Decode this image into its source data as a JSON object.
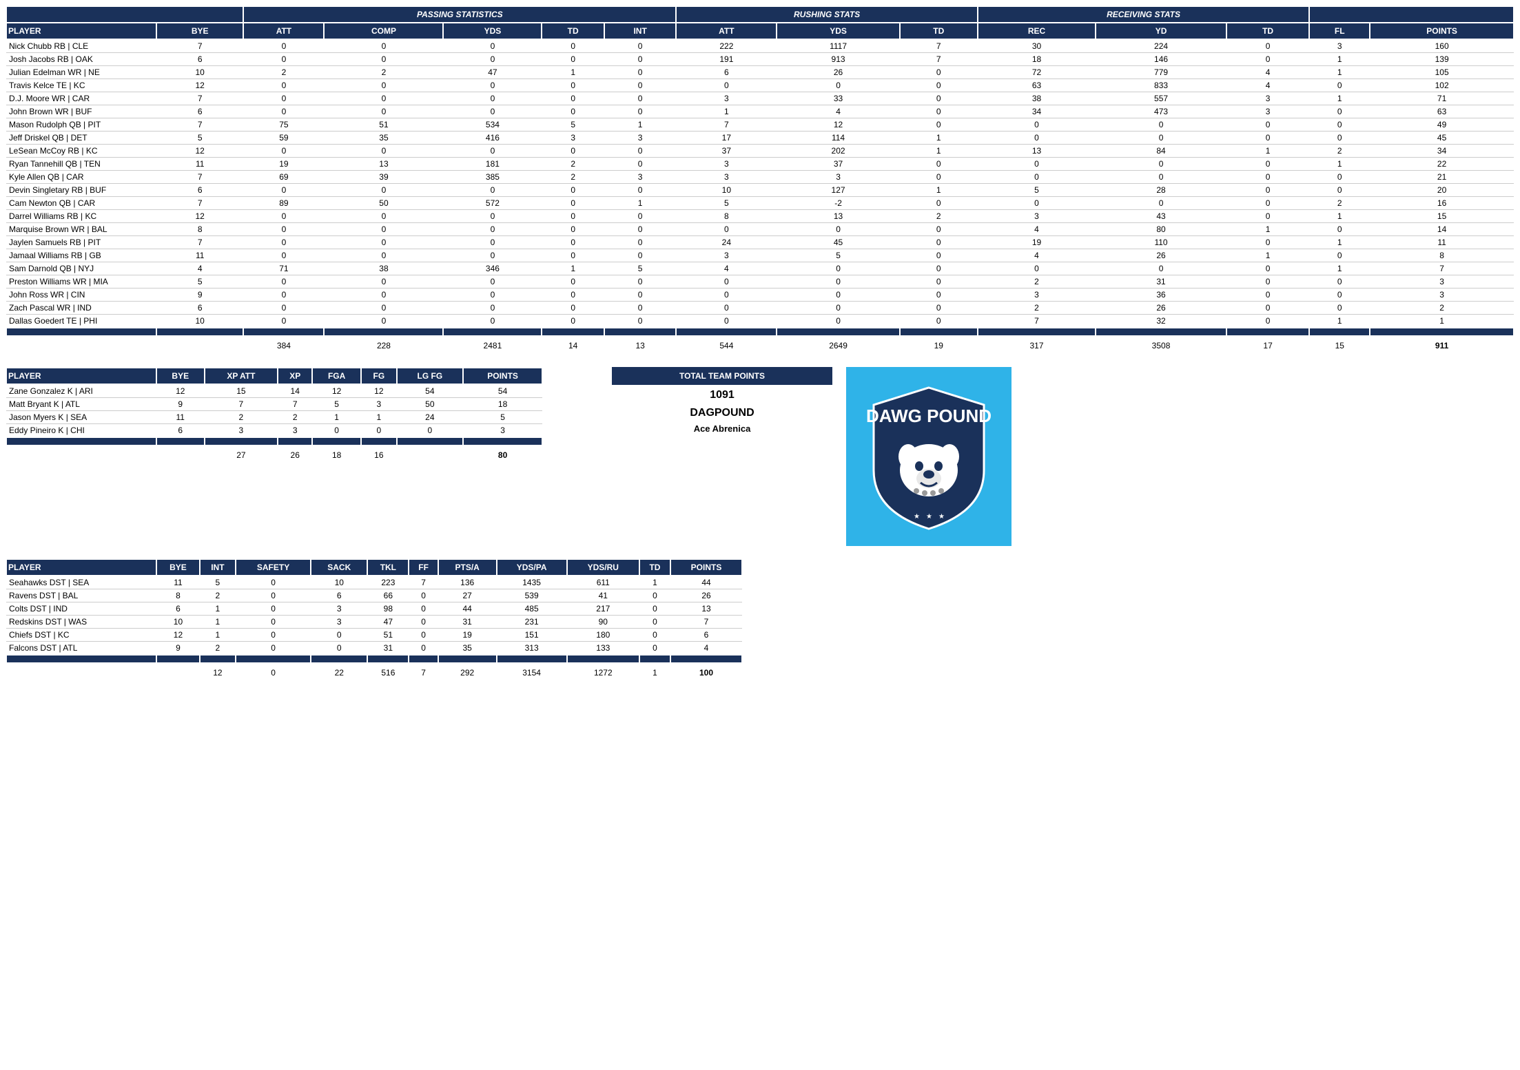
{
  "colors": {
    "header_bg": "#1a315a",
    "header_fg": "#ffffff",
    "row_border": "#cccccc",
    "logo_bg": "#2fb3e8"
  },
  "main_table": {
    "group_headers": [
      {
        "label": "",
        "span": 2
      },
      {
        "label": "PASSING STATISTICS",
        "span": 5
      },
      {
        "label": "RUSHING STATS",
        "span": 3
      },
      {
        "label": "RECEIVING STATS",
        "span": 3
      },
      {
        "label": "",
        "span": 2
      }
    ],
    "columns": [
      "PLAYER",
      "BYE",
      "ATT",
      "COMP",
      "YDS",
      "TD",
      "INT",
      "ATT",
      "YDS",
      "TD",
      "REC",
      "YD",
      "TD",
      "FL",
      "POINTS"
    ],
    "rows": [
      [
        "Nick Chubb RB | CLE",
        7,
        0,
        0,
        0,
        0,
        0,
        222,
        1117,
        7,
        30,
        224,
        0,
        3,
        160
      ],
      [
        "Josh Jacobs RB | OAK",
        6,
        0,
        0,
        0,
        0,
        0,
        191,
        913,
        7,
        18,
        146,
        0,
        1,
        139
      ],
      [
        "Julian Edelman WR | NE",
        10,
        2,
        2,
        47,
        1,
        0,
        6,
        26,
        0,
        72,
        779,
        4,
        1,
        105
      ],
      [
        "Travis Kelce TE | KC",
        12,
        0,
        0,
        0,
        0,
        0,
        0,
        0,
        0,
        63,
        833,
        4,
        0,
        102
      ],
      [
        "D.J. Moore WR | CAR",
        7,
        0,
        0,
        0,
        0,
        0,
        3,
        33,
        0,
        38,
        557,
        3,
        1,
        71
      ],
      [
        "John Brown WR | BUF",
        6,
        0,
        0,
        0,
        0,
        0,
        1,
        4,
        0,
        34,
        473,
        3,
        0,
        63
      ],
      [
        "Mason Rudolph QB | PIT",
        7,
        75,
        51,
        534,
        5,
        1,
        7,
        12,
        0,
        0,
        0,
        0,
        0,
        49
      ],
      [
        "Jeff Driskel QB | DET",
        5,
        59,
        35,
        416,
        3,
        3,
        17,
        114,
        1,
        0,
        0,
        0,
        0,
        45
      ],
      [
        "LeSean McCoy RB | KC",
        12,
        0,
        0,
        0,
        0,
        0,
        37,
        202,
        1,
        13,
        84,
        1,
        2,
        34
      ],
      [
        "Ryan Tannehill QB | TEN",
        11,
        19,
        13,
        181,
        2,
        0,
        3,
        37,
        0,
        0,
        0,
        0,
        1,
        22
      ],
      [
        "Kyle Allen QB | CAR",
        7,
        69,
        39,
        385,
        2,
        3,
        3,
        3,
        0,
        0,
        0,
        0,
        0,
        21
      ],
      [
        "Devin Singletary RB | BUF",
        6,
        0,
        0,
        0,
        0,
        0,
        10,
        127,
        1,
        5,
        28,
        0,
        0,
        20
      ],
      [
        "Cam Newton QB | CAR",
        7,
        89,
        50,
        572,
        0,
        1,
        5,
        -2,
        0,
        0,
        0,
        0,
        2,
        16
      ],
      [
        "Darrel Williams RB | KC",
        12,
        0,
        0,
        0,
        0,
        0,
        8,
        13,
        2,
        3,
        43,
        0,
        1,
        15
      ],
      [
        "Marquise Brown WR | BAL",
        8,
        0,
        0,
        0,
        0,
        0,
        0,
        0,
        0,
        4,
        80,
        1,
        0,
        14
      ],
      [
        "Jaylen Samuels RB | PIT",
        7,
        0,
        0,
        0,
        0,
        0,
        24,
        45,
        0,
        19,
        110,
        0,
        1,
        11
      ],
      [
        "Jamaal Williams RB | GB",
        11,
        0,
        0,
        0,
        0,
        0,
        3,
        5,
        0,
        4,
        26,
        1,
        0,
        8
      ],
      [
        "Sam Darnold QB | NYJ",
        4,
        71,
        38,
        346,
        1,
        5,
        4,
        0,
        0,
        0,
        0,
        0,
        1,
        7
      ],
      [
        "Preston Williams WR | MIA",
        5,
        0,
        0,
        0,
        0,
        0,
        0,
        0,
        0,
        2,
        31,
        0,
        0,
        3
      ],
      [
        "John Ross WR | CIN",
        9,
        0,
        0,
        0,
        0,
        0,
        0,
        0,
        0,
        3,
        36,
        0,
        0,
        3
      ],
      [
        "Zach Pascal WR | IND",
        6,
        0,
        0,
        0,
        0,
        0,
        0,
        0,
        0,
        2,
        26,
        0,
        0,
        2
      ],
      [
        "Dallas Goedert TE | PHI",
        10,
        0,
        0,
        0,
        0,
        0,
        0,
        0,
        0,
        7,
        32,
        0,
        1,
        1
      ]
    ],
    "totals": [
      "",
      "",
      384,
      228,
      2481,
      14,
      13,
      544,
      2649,
      19,
      317,
      3508,
      17,
      15,
      911
    ]
  },
  "kicker_table": {
    "columns": [
      "PLAYER",
      "BYE",
      "XP ATT",
      "XP",
      "FGA",
      "FG",
      "LG FG",
      "POINTS"
    ],
    "rows": [
      [
        "Zane Gonzalez K | ARI",
        12,
        15,
        14,
        12,
        12,
        54,
        54
      ],
      [
        "Matt Bryant K | ATL",
        9,
        7,
        7,
        5,
        3,
        50,
        18
      ],
      [
        "Jason Myers K | SEA",
        11,
        2,
        2,
        1,
        1,
        24,
        5
      ],
      [
        "Eddy Pineiro K | CHI",
        6,
        3,
        3,
        0,
        0,
        0,
        3
      ]
    ],
    "totals": [
      "",
      "",
      27,
      26,
      18,
      16,
      "",
      80
    ]
  },
  "defense_table": {
    "columns": [
      "PLAYER",
      "BYE",
      "INT",
      "SAFETY",
      "SACK",
      "TKL",
      "FF",
      "PTS/A",
      "YDS/PA",
      "YDS/RU",
      "TD",
      "POINTS"
    ],
    "rows": [
      [
        "Seahawks DST | SEA",
        11,
        5,
        0,
        10,
        223,
        7,
        136,
        1435,
        611,
        1,
        44
      ],
      [
        "Ravens DST | BAL",
        8,
        2,
        0,
        6,
        66,
        0,
        27,
        539,
        41,
        0,
        26
      ],
      [
        "Colts DST | IND",
        6,
        1,
        0,
        3,
        98,
        0,
        44,
        485,
        217,
        0,
        13
      ],
      [
        "Redskins DST | WAS",
        10,
        1,
        0,
        3,
        47,
        0,
        31,
        231,
        90,
        0,
        7
      ],
      [
        "Chiefs DST | KC",
        12,
        1,
        0,
        0,
        51,
        0,
        19,
        151,
        180,
        0,
        6
      ],
      [
        "Falcons DST | ATL",
        9,
        2,
        0,
        0,
        31,
        0,
        35,
        313,
        133,
        0,
        4
      ]
    ],
    "totals": [
      "",
      "",
      12,
      0,
      22,
      516,
      7,
      292,
      3154,
      1272,
      1,
      100
    ]
  },
  "team_points": {
    "label": "TOTAL TEAM POINTS",
    "value": "1091",
    "team_name": "DAGPOUND",
    "owner": "Ace Abrenica",
    "logo_text": "DAWG POUND"
  }
}
